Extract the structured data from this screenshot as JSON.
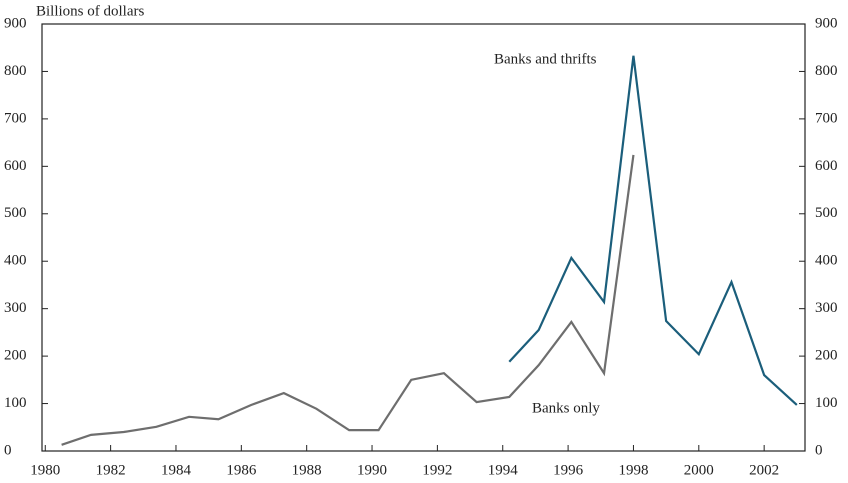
{
  "chart_data": {
    "type": "line",
    "y_label": "Billions of dollars",
    "annotations": [
      "Banks and thrifts",
      "Banks only"
    ],
    "series": [
      {
        "name": "Banks only",
        "color": "#6e6e6e",
        "x": [
          1980.5,
          1981.4,
          1982.4,
          1983.4,
          1984.4,
          1985.3,
          1986.3,
          1987.3,
          1988.3,
          1989.3,
          1990.2,
          1991.2,
          1992.2,
          1993.2,
          1994.2,
          1995.1,
          1996.1,
          1997.1,
          1998.0
        ],
        "values": [
          13,
          34,
          40,
          51,
          72,
          67,
          97,
          122,
          89,
          44,
          44,
          150,
          164,
          103,
          114,
          181,
          272,
          164,
          624
        ]
      },
      {
        "name": "Banks and thrifts",
        "color": "#1b5e7b",
        "x": [
          1994.2,
          1995.1,
          1996.1,
          1997.1,
          1998.0,
          1999.0,
          2000.0,
          2001.0,
          2002.0,
          2003.0
        ],
        "values": [
          188,
          255,
          407,
          314,
          833,
          274,
          204,
          356,
          160,
          97
        ]
      }
    ],
    "xlim": [
      1979.9,
      2003.25
    ],
    "xticks": [
      1980,
      1982,
      1984,
      1986,
      1988,
      1990,
      1992,
      1994,
      1996,
      1998,
      2000,
      2002
    ],
    "ylim": [
      0,
      900
    ],
    "yticks": [
      0,
      100,
      200,
      300,
      400,
      500,
      600,
      700,
      800,
      900
    ],
    "y2lim": [
      0,
      900
    ],
    "y2ticks": [
      0,
      100,
      200,
      300,
      400,
      500,
      600,
      700,
      800,
      900
    ]
  }
}
